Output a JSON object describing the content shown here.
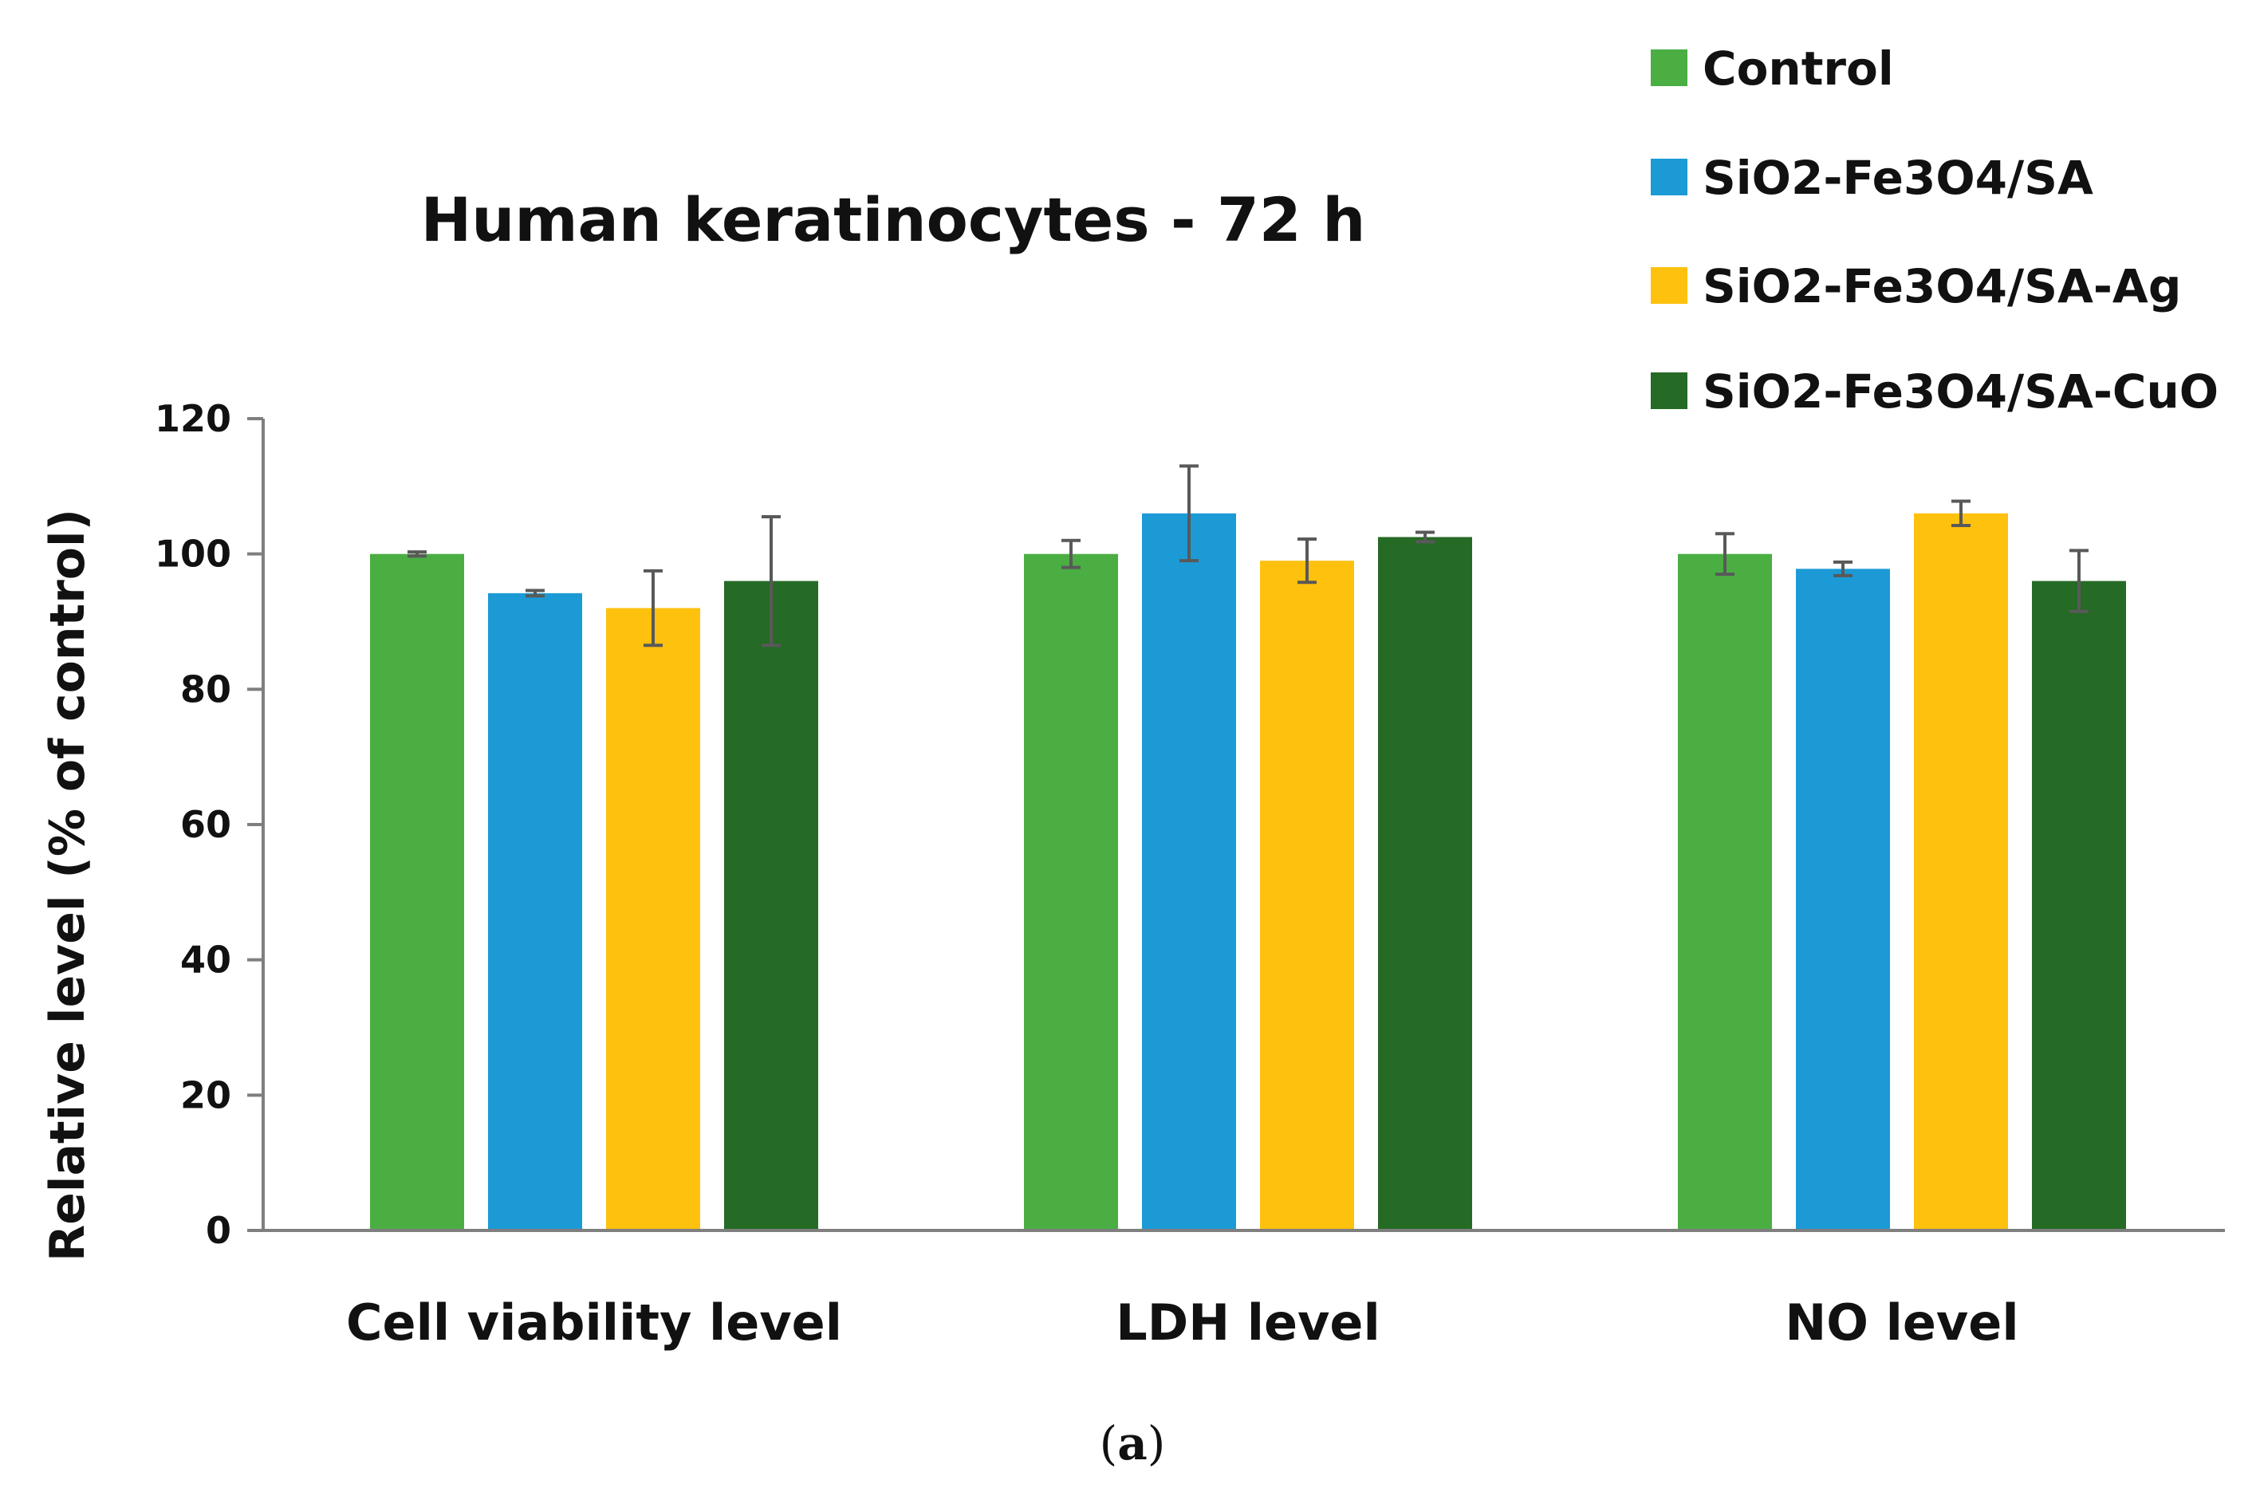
{
  "chart_data": {
    "type": "bar",
    "title": "Human keratinocytes - 72 h",
    "xlabel": "",
    "ylabel": "Relative level (% of control)",
    "ylim": [
      0,
      120
    ],
    "yticks": [
      0,
      20,
      40,
      60,
      80,
      100,
      120
    ],
    "grid": false,
    "legend_position": "top-right",
    "categories": [
      "Cell viability level",
      "LDH level",
      "NO level"
    ],
    "series": [
      {
        "name": "Control",
        "color": "#4aae43",
        "values": [
          100,
          100,
          100
        ],
        "errors": [
          0.3,
          2,
          3
        ]
      },
      {
        "name": "SiO2-Fe3O4/SA",
        "color": "#1c9ad6",
        "values": [
          94.2,
          106,
          97.8
        ],
        "errors": [
          0.4,
          7,
          1
        ]
      },
      {
        "name": "SiO2-Fe3O4/SA-Ag",
        "color": "#fec10e",
        "values": [
          92,
          99,
          106
        ],
        "errors": [
          5.5,
          3.2,
          1.8
        ]
      },
      {
        "name": "SiO2-Fe3O4/SA-CuO",
        "color": "#256a25",
        "values": [
          96,
          102.5,
          96
        ],
        "errors": [
          9.5,
          0.7,
          4.5
        ]
      }
    ]
  },
  "caption": {
    "open": "(",
    "letter": "a",
    "close": ")"
  }
}
